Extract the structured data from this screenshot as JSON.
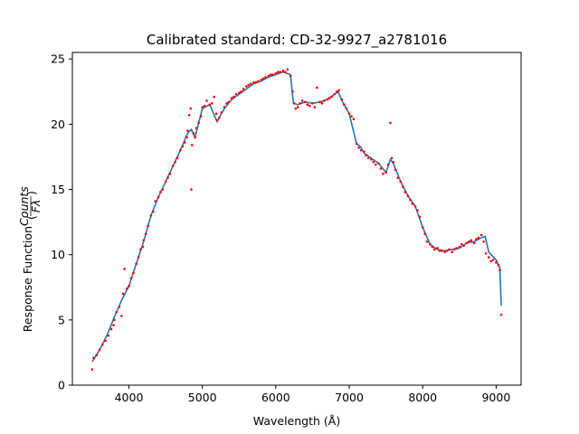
{
  "chart_data": {
    "type": "scatter",
    "title": "Calibrated standard: CD-32-9927_a2781016",
    "xlabel": "Wavelength (Å)",
    "ylabel": "Response Function",
    "ylabel_fraction": {
      "numerator": "Counts",
      "denominator": "Fλ"
    },
    "xlim": [
      3230,
      9340
    ],
    "ylim": [
      0,
      25.5
    ],
    "x_ticks": [
      4000,
      5000,
      6000,
      7000,
      8000,
      9000
    ],
    "y_ticks": [
      0,
      5,
      10,
      15,
      20,
      25
    ],
    "grid": false,
    "colors": {
      "fit": "#1f77b4",
      "points": "#ff0000"
    },
    "series": [
      {
        "kind": "line",
        "x": [
          3500,
          3600,
          3700,
          3800,
          3900,
          4000,
          4100,
          4200,
          4300,
          4400,
          4500,
          4600,
          4700,
          4800,
          4850,
          4900,
          5000,
          5100,
          5200,
          5300,
          5400,
          5500,
          5600,
          5700,
          5800,
          5900,
          6000,
          6100,
          6200,
          6240,
          6300,
          6400,
          6500,
          6600,
          6700,
          6800,
          6850,
          6900,
          7000,
          7100,
          7150,
          7200,
          7300,
          7400,
          7500,
          7560,
          7600,
          7700,
          7800,
          7900,
          8000,
          8100,
          8200,
          8300,
          8400,
          8500,
          8600,
          8700,
          8800,
          8850,
          8900,
          9000,
          9050,
          9070
        ],
        "y": [
          1.8,
          2.7,
          3.8,
          5.2,
          6.5,
          7.6,
          9.3,
          11.0,
          13.0,
          14.4,
          15.6,
          16.8,
          18.0,
          19.3,
          19.6,
          19.0,
          21.2,
          21.5,
          20.2,
          21.2,
          21.9,
          22.3,
          22.7,
          23.1,
          23.3,
          23.6,
          23.8,
          24.0,
          23.8,
          21.6,
          21.5,
          21.7,
          21.6,
          21.7,
          21.9,
          22.3,
          22.5,
          21.8,
          20.8,
          18.5,
          18.3,
          17.8,
          17.4,
          17.0,
          16.3,
          17.3,
          17.0,
          15.6,
          14.5,
          13.7,
          12.1,
          10.8,
          10.4,
          10.3,
          10.4,
          10.5,
          10.9,
          11.0,
          11.3,
          11.4,
          10.2,
          9.6,
          9.0,
          6.1
        ]
      },
      {
        "kind": "scatter",
        "x": [
          3500,
          3520,
          3560,
          3600,
          3640,
          3680,
          3720,
          3760,
          3790,
          3800,
          3830,
          3870,
          3900,
          3920,
          3940,
          3970,
          4000,
          4030,
          4060,
          4100,
          4130,
          4160,
          4190,
          4200,
          4230,
          4260,
          4300,
          4330,
          4360,
          4400,
          4430,
          4460,
          4500,
          4530,
          4560,
          4600,
          4630,
          4660,
          4700,
          4730,
          4760,
          4790,
          4800,
          4820,
          4840,
          4850,
          4860,
          4880,
          4900,
          4920,
          4950,
          4980,
          5000,
          5030,
          5060,
          5100,
          5130,
          5160,
          5190,
          5200,
          5230,
          5260,
          5300,
          5330,
          5360,
          5400,
          5430,
          5460,
          5500,
          5530,
          5560,
          5600,
          5630,
          5660,
          5700,
          5730,
          5760,
          5800,
          5830,
          5860,
          5900,
          5930,
          5960,
          6000,
          6030,
          6060,
          6100,
          6130,
          6160,
          6200,
          6230,
          6250,
          6270,
          6300,
          6330,
          6360,
          6400,
          6430,
          6460,
          6500,
          6530,
          6560,
          6600,
          6630,
          6660,
          6700,
          6730,
          6760,
          6800,
          6830,
          6860,
          6900,
          6930,
          6960,
          7000,
          7030,
          7060,
          7100,
          7130,
          7160,
          7200,
          7230,
          7260,
          7300,
          7330,
          7360,
          7400,
          7430,
          7460,
          7500,
          7530,
          7560,
          7580,
          7600,
          7630,
          7660,
          7700,
          7730,
          7760,
          7800,
          7830,
          7860,
          7900,
          7930,
          7960,
          8000,
          8030,
          8060,
          8100,
          8130,
          8160,
          8200,
          8230,
          8260,
          8300,
          8330,
          8360,
          8400,
          8430,
          8460,
          8500,
          8530,
          8560,
          8600,
          8630,
          8660,
          8700,
          8730,
          8760,
          8800,
          8830,
          8860,
          8900,
          8930,
          8960,
          9000,
          9030,
          9050,
          9070
        ],
        "y": [
          1.2,
          2.1,
          2.3,
          2.7,
          3.1,
          3.4,
          3.8,
          4.3,
          4.6,
          5.0,
          5.6,
          6.0,
          5.3,
          7.0,
          8.9,
          7.4,
          7.6,
          8.2,
          8.6,
          9.3,
          9.8,
          10.4,
          10.6,
          11.1,
          11.6,
          12.2,
          13.0,
          13.3,
          14.1,
          14.4,
          14.8,
          15.0,
          15.6,
          15.9,
          16.2,
          16.8,
          17.1,
          17.4,
          18.0,
          18.3,
          18.6,
          19.0,
          19.5,
          20.7,
          21.2,
          15.0,
          18.4,
          19.3,
          19.0,
          19.7,
          20.1,
          20.6,
          21.3,
          21.4,
          21.8,
          21.5,
          21.6,
          22.1,
          20.8,
          20.3,
          20.5,
          20.9,
          21.3,
          21.6,
          21.7,
          22.0,
          22.1,
          22.3,
          22.4,
          22.5,
          22.7,
          22.9,
          23.0,
          23.1,
          23.2,
          23.2,
          23.3,
          23.4,
          23.5,
          23.6,
          23.7,
          23.8,
          23.8,
          23.9,
          24.0,
          24.0,
          24.1,
          24.0,
          24.2,
          23.7,
          22.5,
          21.6,
          21.2,
          21.3,
          21.6,
          21.8,
          21.7,
          21.5,
          21.4,
          21.6,
          21.3,
          22.8,
          21.7,
          21.6,
          21.8,
          21.9,
          22.0,
          22.1,
          22.3,
          22.5,
          22.6,
          21.9,
          21.5,
          21.2,
          20.8,
          20.6,
          20.4,
          18.5,
          18.2,
          18.0,
          17.9,
          17.6,
          17.4,
          17.3,
          17.1,
          16.9,
          17.0,
          16.6,
          16.2,
          16.3,
          16.9,
          20.1,
          17.4,
          17.1,
          16.5,
          15.9,
          15.6,
          15.2,
          14.8,
          14.5,
          14.2,
          13.9,
          13.7,
          13.4,
          12.9,
          12.1,
          11.6,
          11.0,
          10.8,
          10.6,
          10.4,
          10.5,
          10.3,
          10.3,
          10.2,
          10.3,
          10.4,
          10.2,
          10.4,
          10.5,
          10.6,
          10.8,
          10.7,
          10.9,
          11.0,
          11.1,
          10.9,
          11.2,
          11.3,
          11.5,
          11.0,
          10.1,
          9.8,
          9.5,
          9.6,
          9.4,
          9.2,
          8.8,
          5.4
        ]
      }
    ]
  }
}
